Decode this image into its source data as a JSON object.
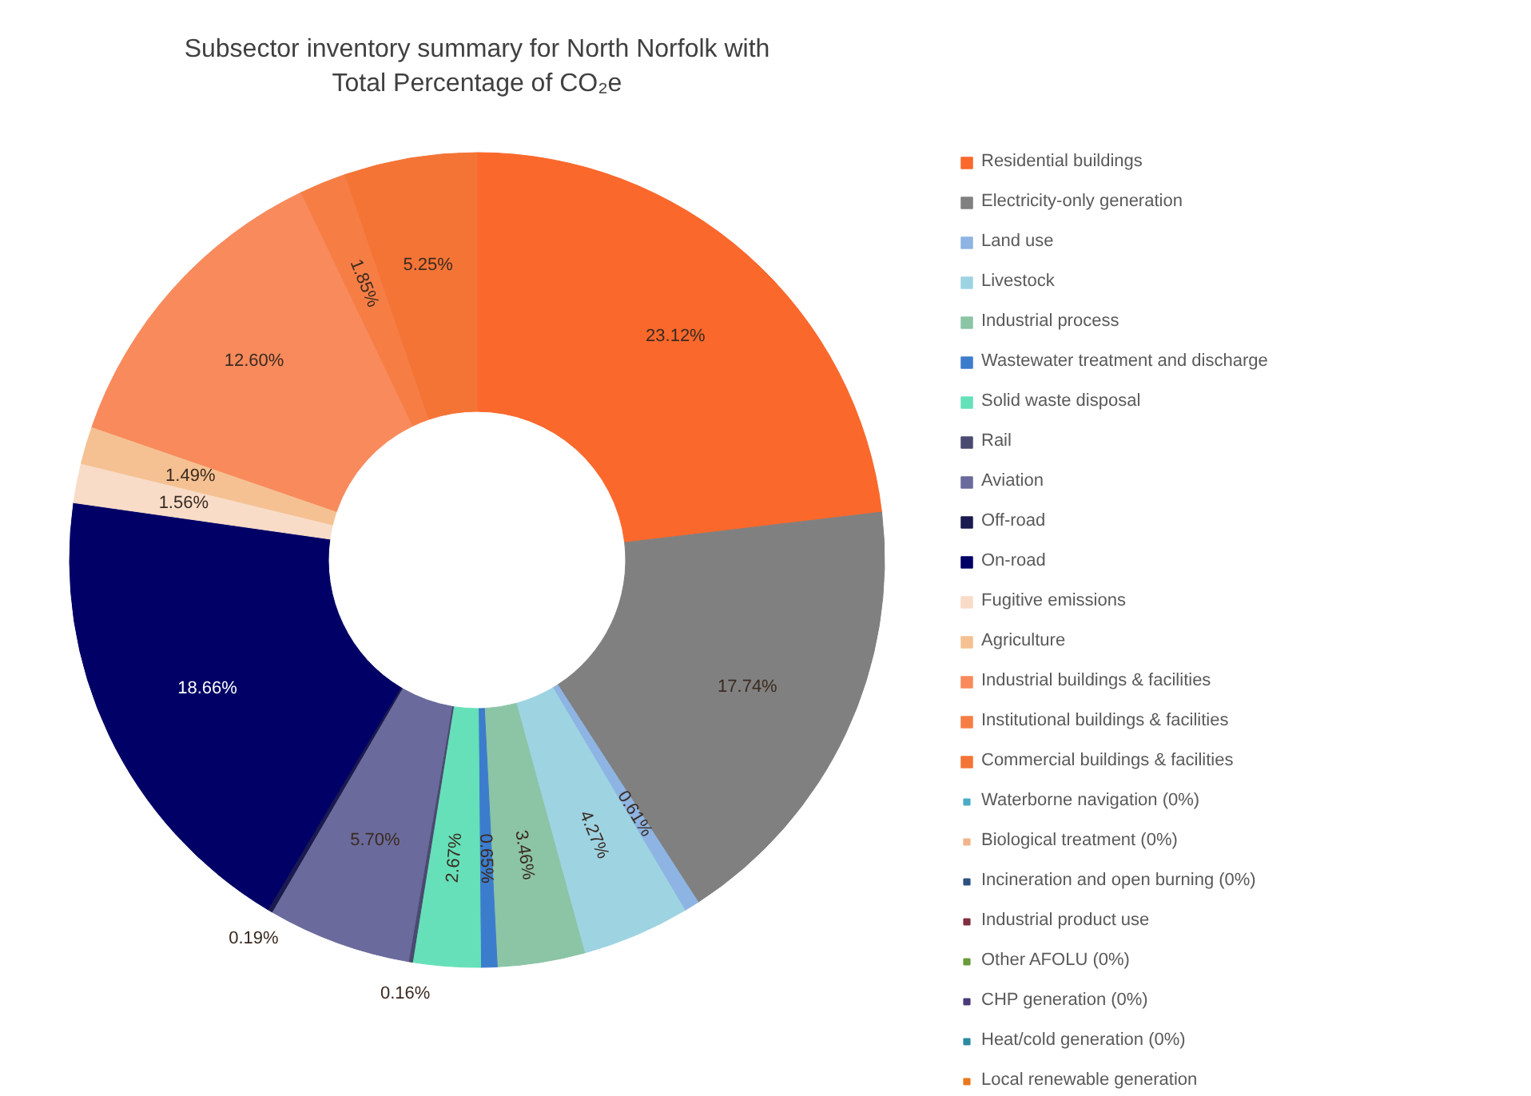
{
  "chart_data": {
    "type": "donut",
    "title": "Subsector inventory summary for North Norfolk with Total Percentage of CO₂e",
    "categories": [
      "Residential buildings",
      "Electricity-only generation",
      "Land use",
      "Livestock",
      "Industrial process",
      "Wastewater treatment and discharge",
      "Solid waste disposal",
      "Rail",
      "Aviation",
      "Off-road",
      "On-road",
      "Fugitive emissions",
      "Agriculture",
      "Industrial buildings & facilities",
      "Institutional buildings & facilities",
      "Commercial buildings & facilities",
      "Waterborne navigation (0%)",
      "Biological treatment (0%)",
      "Incineration and open burning (0%)",
      "Industrial product use",
      "Other AFOLU (0%)",
      "CHP generation (0%)",
      "Heat/cold generation (0%)",
      "Local renewable generation"
    ],
    "values": [
      23.12,
      17.74,
      0.61,
      4.27,
      3.46,
      0.65,
      2.67,
      0.16,
      5.7,
      0.19,
      18.66,
      1.56,
      1.49,
      12.6,
      1.85,
      5.25,
      0,
      0,
      0,
      0,
      0,
      0,
      0,
      0
    ],
    "value_labels": [
      "23.12%",
      "17.74%",
      "0.61%",
      "4.27%",
      "3.46%",
      "0.65%",
      "2.67%",
      "0.16%",
      "5.70%",
      "0.19%",
      "18.66%",
      "1.56%",
      "1.49%",
      "12.60%",
      "1.85%",
      "5.25%",
      null,
      null,
      null,
      null,
      null,
      null,
      null,
      null
    ],
    "colors": [
      "#fa682c",
      "#808080",
      "#8db4e2",
      "#9ed3e2",
      "#8cc4a6",
      "#3c7ccc",
      "#66e0b8",
      "#4a4a70",
      "#6a6a9c",
      "#1a1a50",
      "#000066",
      "#f8dcc8",
      "#f5c192",
      "#f88a5c",
      "#f67e45",
      "#f47436",
      "#4bacc6",
      "#f2b48a",
      "#2f4f7f",
      "#7f2f3f",
      "#6a9a3a",
      "#4a3a7a",
      "#2a8aa0",
      "#e8781e"
    ],
    "legend": "right"
  }
}
